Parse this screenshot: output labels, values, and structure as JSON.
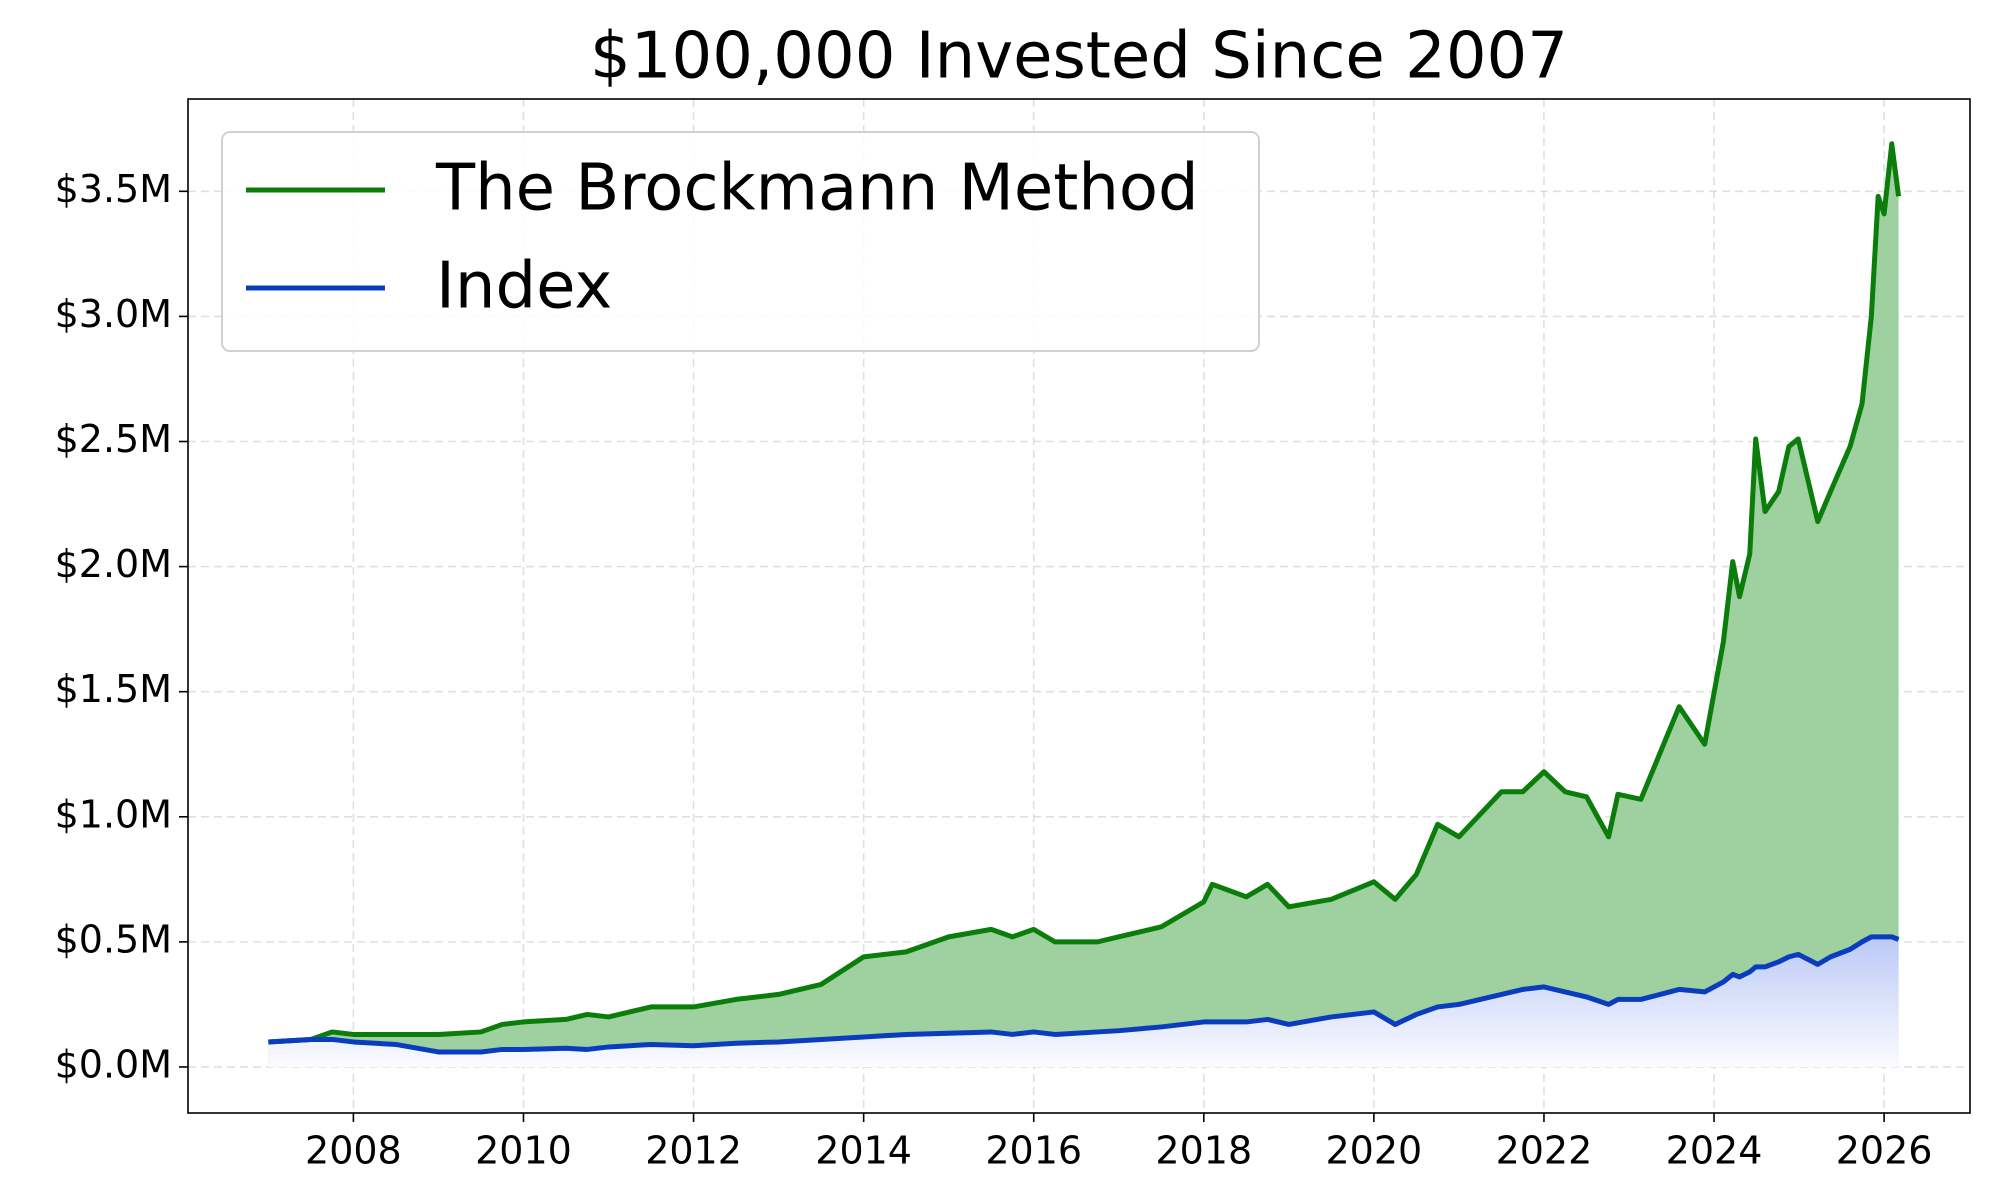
{
  "chart_data": {
    "type": "line",
    "title": "$100,000 Invested Since 2007",
    "x": [
      2007.0,
      2007.5,
      2007.75,
      2008.0,
      2008.5,
      2009.0,
      2009.5,
      2009.75,
      2010.0,
      2010.5,
      2010.75,
      2011.0,
      2011.5,
      2012.0,
      2012.5,
      2013.0,
      2013.5,
      2014.0,
      2014.5,
      2015.0,
      2015.5,
      2015.75,
      2016.0,
      2016.25,
      2016.75,
      2017.0,
      2017.5,
      2018.0,
      2018.1,
      2018.5,
      2018.75,
      2019.0,
      2019.5,
      2020.0,
      2020.25,
      2020.5,
      2020.75,
      2021.0,
      2021.5,
      2021.75,
      2022.0,
      2022.25,
      2022.5,
      2022.76,
      2022.87,
      2023.14,
      2023.59,
      2023.89,
      2024.11,
      2024.22,
      2024.3,
      2024.42,
      2024.49,
      2024.6,
      2024.76,
      2024.88,
      2024.99,
      2025.22,
      2025.37,
      2025.6,
      2025.74,
      2025.85,
      2025.93,
      2026.0,
      2026.09,
      2026.17
    ],
    "series": [
      {
        "name": "The Brockmann Method",
        "color": "#0a7d0a",
        "fill": "#9acd9a",
        "values": [
          100000,
          110000,
          140000,
          130000,
          130000,
          130000,
          140000,
          170000,
          180000,
          190000,
          210000,
          200000,
          240000,
          240000,
          270000,
          290000,
          330000,
          440000,
          460000,
          520000,
          550000,
          520000,
          550000,
          500000,
          500000,
          520000,
          560000,
          660000,
          730000,
          680000,
          730000,
          640000,
          670000,
          740000,
          670000,
          770000,
          970000,
          920000,
          1100000,
          1100000,
          1180000,
          1100000,
          1080000,
          920000,
          1090000,
          1070000,
          1440000,
          1290000,
          1700000,
          2020000,
          1880000,
          2050000,
          2510000,
          2220000,
          2300000,
          2480000,
          2510000,
          2180000,
          2300000,
          2480000,
          2650000,
          3000000,
          3480000,
          3410000,
          3690000,
          3480000
        ]
      },
      {
        "name": "Index",
        "color": "#0a3cbf",
        "fill": "#3c64e6",
        "values": [
          100000,
          110000,
          110000,
          100000,
          90000,
          60000,
          60000,
          70000,
          70000,
          75000,
          70000,
          80000,
          90000,
          85000,
          95000,
          100000,
          110000,
          120000,
          130000,
          135000,
          140000,
          130000,
          140000,
          130000,
          140000,
          145000,
          160000,
          180000,
          180000,
          180000,
          190000,
          170000,
          200000,
          220000,
          170000,
          210000,
          240000,
          250000,
          290000,
          310000,
          320000,
          300000,
          280000,
          250000,
          270000,
          270000,
          310000,
          300000,
          340000,
          370000,
          360000,
          380000,
          400000,
          400000,
          420000,
          440000,
          450000,
          410000,
          440000,
          470000,
          500000,
          520000,
          520000,
          520000,
          520000,
          510000
        ]
      }
    ],
    "xlim": [
      2006.055,
      2027.01
    ],
    "xticks": [
      2008,
      2010,
      2012,
      2014,
      2016,
      2018,
      2020,
      2022,
      2024,
      2026
    ],
    "ylim": [
      -184000,
      3869000
    ],
    "yticks": [
      {
        "value": 0,
        "label": "$0.0M"
      },
      {
        "value": 500000,
        "label": "$0.5M"
      },
      {
        "value": 1000000,
        "label": "$1.0M"
      },
      {
        "value": 1500000,
        "label": "$1.5M"
      },
      {
        "value": 2000000,
        "label": "$2.0M"
      },
      {
        "value": 2500000,
        "label": "$2.5M"
      },
      {
        "value": 3000000,
        "label": "$3.0M"
      },
      {
        "value": 3500000,
        "label": "$3.5M"
      }
    ],
    "grid": true,
    "legend": "upper left"
  }
}
